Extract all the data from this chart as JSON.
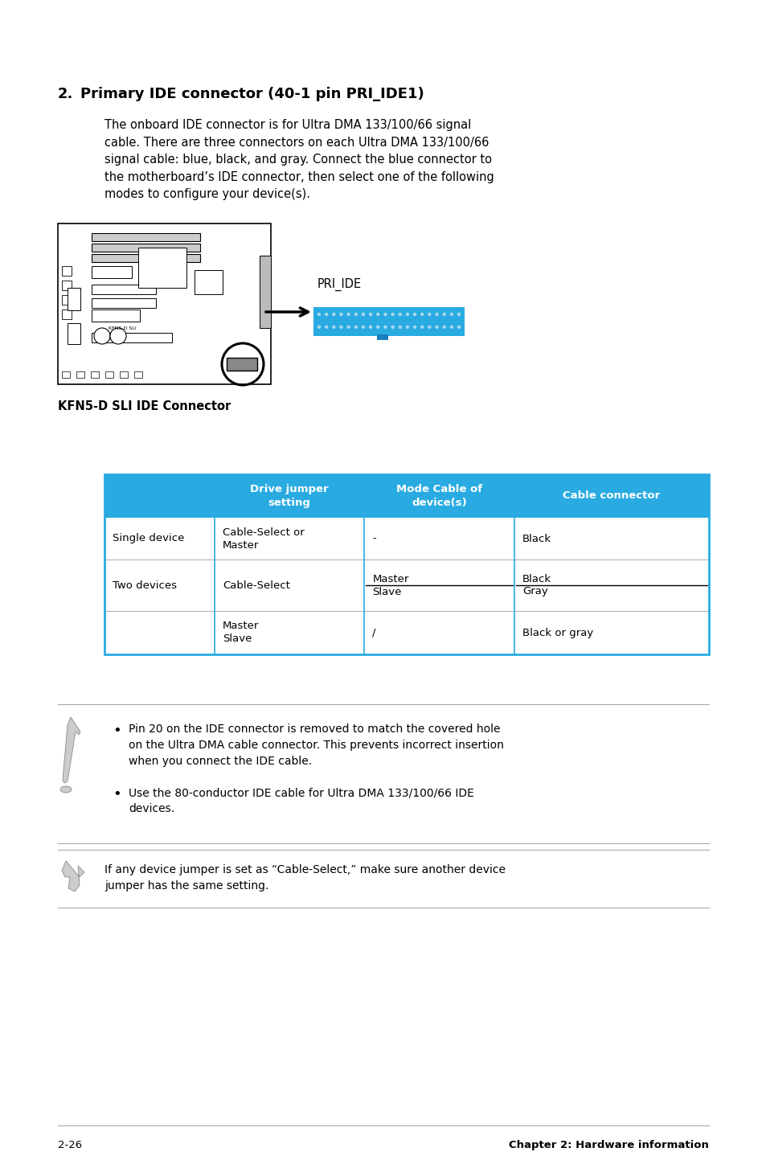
{
  "page_bg": "#ffffff",
  "title_number": "2.",
  "title_text": "Primary IDE connector (40-1 pin PRI_IDE1)",
  "body_text": "The onboard IDE connector is for Ultra DMA 133/100/66 signal\ncable. There are three connectors on each Ultra DMA 133/100/66\nsignal cable: blue, black, and gray. Connect the blue connector to\nthe motherboard’s IDE connector, then select one of the following\nmodes to configure your device(s).",
  "connector_label": "KFN5-D SLI IDE Connector",
  "pri_ide_label": "PRI_IDE",
  "connector_color": "#29abe2",
  "table_header_bg": "#29abe2",
  "table_header_color": "#ffffff",
  "table_border_color": "#29abe2",
  "table_headers": [
    "",
    "Drive jumper\nsetting",
    "Mode Cable of\ndevice(s)",
    "Cable connector"
  ],
  "table_rows": [
    [
      "Single device",
      "Cable-Select or\nMaster",
      "-",
      "Black"
    ],
    [
      "Two devices",
      "Cable-Select",
      "Master\nSlave",
      "Black\nGray"
    ],
    [
      "",
      "Master\nSlave",
      "/",
      "Black or gray"
    ]
  ],
  "note2_text": "If any device jumper is set as “Cable-Select,” make sure another device\njumper has the same setting.",
  "footer_left": "2-26",
  "footer_right": "Chapter 2: Hardware information"
}
